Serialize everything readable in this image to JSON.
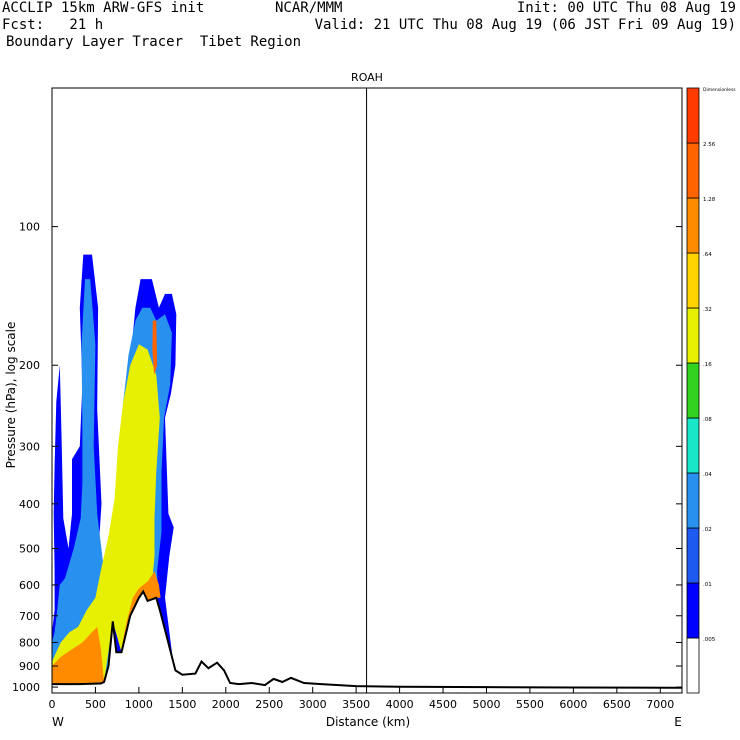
{
  "header": {
    "left_line1": "ACCLIP 15km ARW-GFS init",
    "left_line2": "Fcst:   21 h",
    "left_line3": "Boundary Layer Tracer  Tibet Region",
    "center_line1": "NCAR/MMM",
    "right_line1": "Init: 00 UTC Thu 08 Aug 19",
    "right_line2": "Valid: 21 UTC Thu 08 Aug 19 (06 JST Fri 09 Aug 19)"
  },
  "colorbar": {
    "colors": [
      "#ffffff",
      "#0000ff",
      "#1e5af0",
      "#2891f0",
      "#19e6c8",
      "#32d21e",
      "#e6f000",
      "#ffd200",
      "#ff8c00",
      "#ff6400",
      "#ff3c00"
    ],
    "tick_labels": [
      ".005",
      ".01",
      ".02",
      ".04",
      ".08",
      ".16",
      ".32",
      ".64",
      "1.28",
      "2.56",
      "Dimensionless"
    ]
  },
  "chart_data": {
    "type": "heatmap",
    "title": "ROAH",
    "xlabel": "Distance (km)",
    "ylabel": "Pressure (hPa), log scale",
    "x_ticks": [
      "0",
      "500",
      "1000",
      "1500",
      "2000",
      "2500",
      "3000",
      "3500",
      "4000",
      "4500",
      "5000",
      "5500",
      "6000",
      "6500",
      "7000"
    ],
    "y_ticks": [
      "100",
      "200",
      "300",
      "400",
      "500",
      "600",
      "700",
      "800",
      "900",
      "1000"
    ],
    "y_tick_values": [
      100,
      200,
      300,
      400,
      500,
      600,
      700,
      800,
      900,
      1000
    ],
    "xlim": [
      0,
      7250
    ],
    "ylim_hpa": [
      1030,
      50
    ],
    "y_scale": "log",
    "x_left_label": "W",
    "x_right_label": "E",
    "vertical_marker_km": 3620,
    "terrain_profile": [
      [
        0,
        985
      ],
      [
        300,
        985
      ],
      [
        560,
        982
      ],
      [
        600,
        975
      ],
      [
        650,
        900
      ],
      [
        700,
        720
      ],
      [
        740,
        840
      ],
      [
        800,
        840
      ],
      [
        900,
        700
      ],
      [
        1000,
        640
      ],
      [
        1050,
        620
      ],
      [
        1100,
        650
      ],
      [
        1200,
        640
      ],
      [
        1250,
        690
      ],
      [
        1330,
        790
      ],
      [
        1420,
        920
      ],
      [
        1500,
        940
      ],
      [
        1650,
        935
      ],
      [
        1720,
        880
      ],
      [
        1800,
        910
      ],
      [
        1900,
        885
      ],
      [
        1980,
        920
      ],
      [
        2050,
        980
      ],
      [
        2150,
        985
      ],
      [
        2300,
        980
      ],
      [
        2450,
        990
      ],
      [
        2550,
        960
      ],
      [
        2650,
        975
      ],
      [
        2750,
        955
      ],
      [
        2900,
        980
      ],
      [
        3100,
        985
      ],
      [
        3500,
        995
      ],
      [
        4000,
        998
      ],
      [
        5000,
        1000
      ],
      [
        6000,
        1002
      ],
      [
        7100,
        1003
      ],
      [
        7250,
        1003
      ]
    ],
    "tracer_contours": [
      {
        "band": 1,
        "points": [
          [
            0,
            1000
          ],
          [
            0,
            760
          ],
          [
            30,
            680
          ],
          [
            30,
            560
          ],
          [
            20,
            420
          ],
          [
            30,
            330
          ],
          [
            50,
            240
          ],
          [
            90,
            200
          ],
          [
            110,
            290
          ],
          [
            130,
            430
          ],
          [
            190,
            500
          ],
          [
            230,
            420
          ],
          [
            230,
            320
          ],
          [
            320,
            300
          ],
          [
            350,
            220
          ],
          [
            320,
            150
          ],
          [
            360,
            115
          ],
          [
            460,
            115
          ],
          [
            530,
            150
          ],
          [
            520,
            250
          ],
          [
            570,
            400
          ],
          [
            520,
            560
          ],
          [
            560,
            720
          ],
          [
            640,
            720
          ],
          [
            700,
            560
          ],
          [
            780,
            430
          ],
          [
            880,
            290
          ],
          [
            920,
            180
          ],
          [
            960,
            150
          ],
          [
            1020,
            130
          ],
          [
            1150,
            130
          ],
          [
            1230,
            150
          ],
          [
            1300,
            140
          ],
          [
            1380,
            140
          ],
          [
            1430,
            155
          ],
          [
            1420,
            200
          ],
          [
            1370,
            230
          ],
          [
            1300,
            260
          ],
          [
            1340,
            420
          ],
          [
            1400,
            450
          ],
          [
            1350,
            520
          ],
          [
            1300,
            640
          ],
          [
            1400,
            900
          ],
          [
            1450,
            950
          ],
          [
            1400,
            1000
          ]
        ]
      },
      {
        "band": 3,
        "points": [
          [
            0,
            980
          ],
          [
            0,
            800
          ],
          [
            30,
            760
          ],
          [
            60,
            680
          ],
          [
            90,
            600
          ],
          [
            150,
            580
          ],
          [
            250,
            500
          ],
          [
            330,
            430
          ],
          [
            350,
            360
          ],
          [
            350,
            280
          ],
          [
            340,
            180
          ],
          [
            380,
            130
          ],
          [
            440,
            130
          ],
          [
            500,
            180
          ],
          [
            480,
            300
          ],
          [
            520,
            420
          ],
          [
            600,
            560
          ],
          [
            700,
            500
          ],
          [
            760,
            400
          ],
          [
            800,
            260
          ],
          [
            880,
            190
          ],
          [
            960,
            160
          ],
          [
            1040,
            150
          ],
          [
            1130,
            150
          ],
          [
            1200,
            160
          ],
          [
            1300,
            155
          ],
          [
            1380,
            170
          ],
          [
            1360,
            220
          ],
          [
            1290,
            260
          ],
          [
            1260,
            340
          ],
          [
            1260,
            460
          ],
          [
            1210,
            560
          ],
          [
            1220,
            640
          ],
          [
            1100,
            640
          ],
          [
            1000,
            650
          ],
          [
            900,
            700
          ],
          [
            800,
            840
          ],
          [
            700,
            720
          ],
          [
            650,
            900
          ],
          [
            600,
            975
          ],
          [
            300,
            985
          ]
        ]
      },
      {
        "band": 6,
        "points": [
          [
            0,
            980
          ],
          [
            0,
            880
          ],
          [
            100,
            800
          ],
          [
            200,
            760
          ],
          [
            300,
            740
          ],
          [
            400,
            680
          ],
          [
            500,
            640
          ],
          [
            560,
            560
          ],
          [
            650,
            470
          ],
          [
            720,
            390
          ],
          [
            760,
            300
          ],
          [
            820,
            240
          ],
          [
            900,
            200
          ],
          [
            1000,
            180
          ],
          [
            1100,
            185
          ],
          [
            1200,
            210
          ],
          [
            1240,
            260
          ],
          [
            1200,
            340
          ],
          [
            1180,
            430
          ],
          [
            1180,
            520
          ],
          [
            1150,
            600
          ],
          [
            1050,
            620
          ],
          [
            900,
            700
          ],
          [
            800,
            840
          ],
          [
            700,
            720
          ],
          [
            600,
            975
          ],
          [
            300,
            985
          ]
        ]
      },
      {
        "band": 8,
        "points": [
          [
            0,
            985
          ],
          [
            0,
            900
          ],
          [
            100,
            860
          ],
          [
            220,
            830
          ],
          [
            350,
            800
          ],
          [
            460,
            760
          ],
          [
            520,
            740
          ],
          [
            560,
            820
          ],
          [
            600,
            975
          ],
          [
            300,
            985
          ]
        ]
      },
      {
        "band": 8,
        "points": [
          [
            800,
            820
          ],
          [
            860,
            720
          ],
          [
            930,
            640
          ],
          [
            1000,
            610
          ],
          [
            1100,
            590
          ],
          [
            1180,
            560
          ],
          [
            1230,
            600
          ],
          [
            1250,
            640
          ],
          [
            1200,
            640
          ],
          [
            1100,
            650
          ],
          [
            1050,
            620
          ],
          [
            1000,
            640
          ],
          [
            900,
            700
          ]
        ]
      },
      {
        "band": 9,
        "points": [
          [
            1160,
            160
          ],
          [
            1200,
            160
          ],
          [
            1210,
            200
          ],
          [
            1175,
            210
          ],
          [
            1155,
            185
          ]
        ]
      }
    ]
  }
}
